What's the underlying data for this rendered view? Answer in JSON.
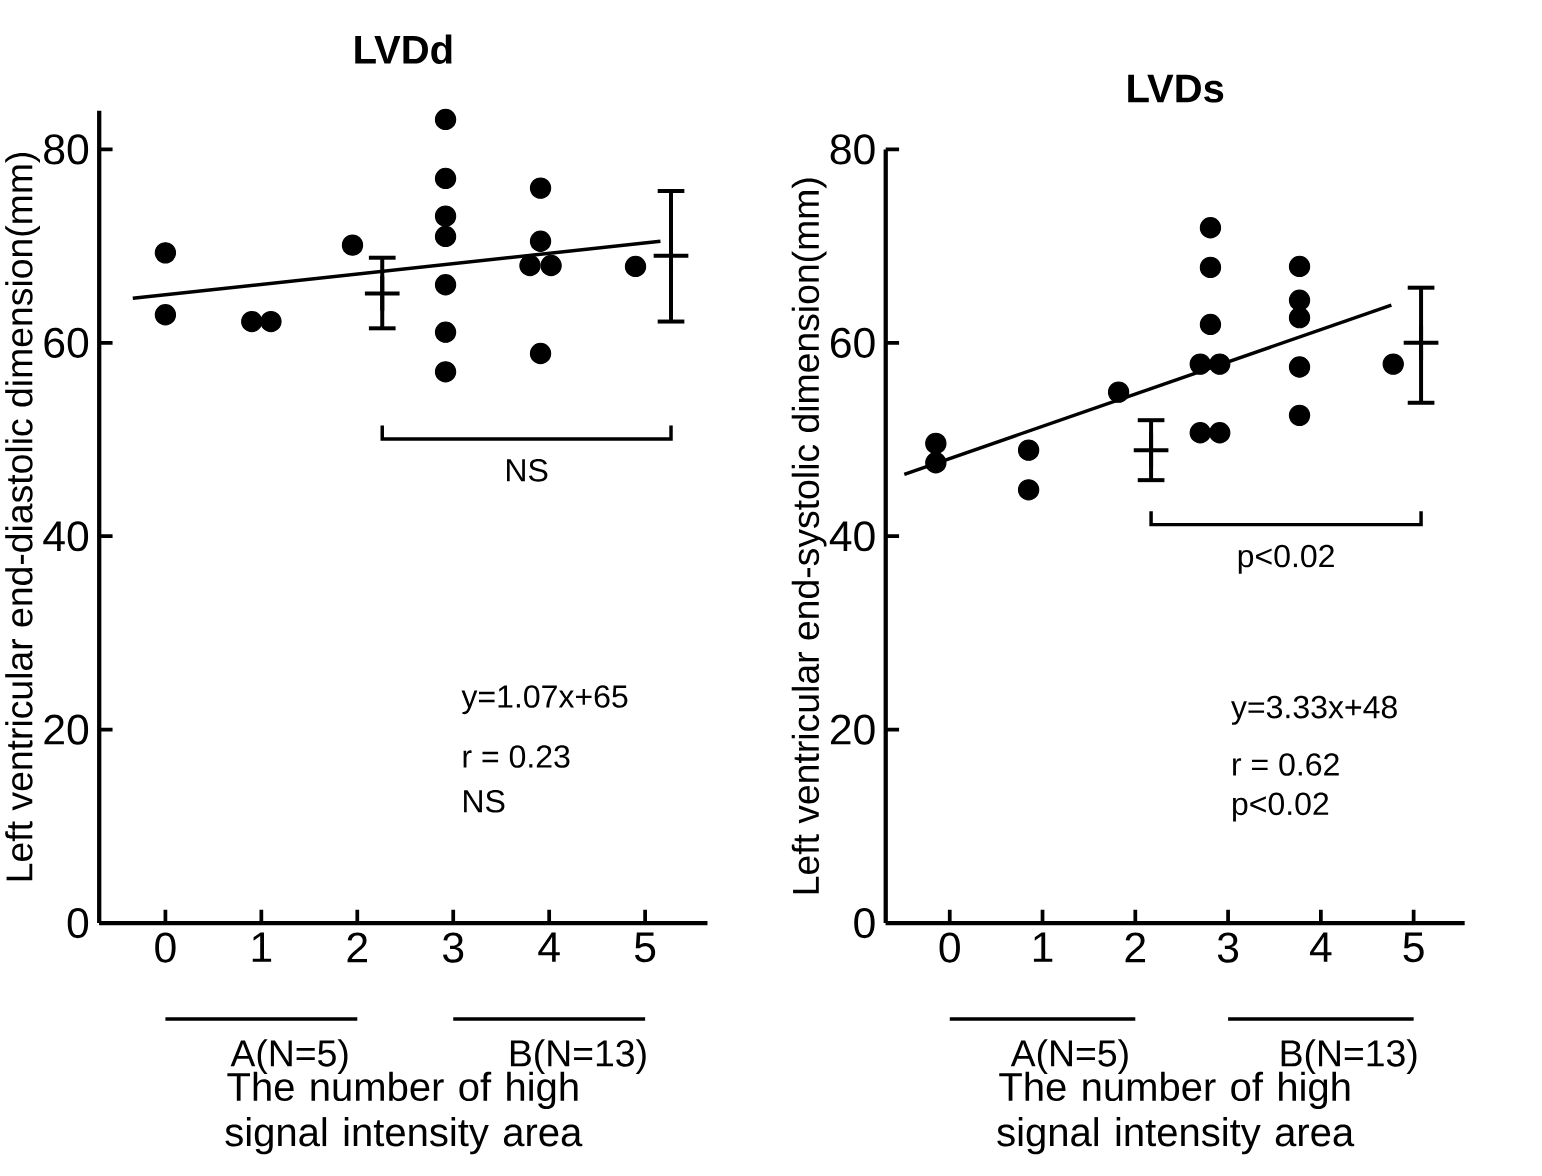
{
  "chart_data": [
    {
      "type": "scatter",
      "title": "LVDd",
      "xlabel": "The number of high signal intensity area",
      "ylabel": "Left ventricular end-diastolic dimension(mm)",
      "xlim": [
        -0.69,
        5.65
      ],
      "ylim": [
        0,
        84
      ],
      "xticks": [
        0,
        1,
        2,
        3,
        4,
        5
      ],
      "yticks": [
        0,
        20,
        40,
        60,
        80
      ],
      "series": [
        {
          "marker": "circle",
          "color": "#000000",
          "x": [
            0,
            0,
            0.9,
            1.1,
            1.95,
            2.92,
            2.92,
            2.92,
            2.92,
            2.92,
            2.92,
            2.92,
            3.91,
            3.91,
            3.8,
            4.02,
            3.91,
            4.9
          ],
          "values": [
            69.3,
            62.9,
            62.2,
            62.2,
            70.1,
            83.1,
            77.0,
            73.1,
            71.0,
            66.0,
            61.1,
            57.0,
            76.0,
            70.5,
            68.0,
            68.0,
            58.9,
            67.9
          ]
        },
        {
          "type": "line",
          "color": "#000000",
          "x": [
            -0.34,
            5.16
          ],
          "values": [
            64.6,
            70.5
          ]
        },
        {
          "type": "scatter",
          "marker": "cross",
          "color": "#000000",
          "x": [
            2.26,
            5.27
          ],
          "values": [
            65.1,
            69.0
          ],
          "errors": [
            [
              61.5,
              68.8
            ],
            [
              62.2,
              75.7
            ]
          ]
        }
      ],
      "annotations": [
        "NS",
        "A(N=5)",
        "B(N=13)",
        "y=1.07x+65",
        "r = 0.23",
        "NS"
      ]
    },
    {
      "type": "scatter",
      "title": "LVDs",
      "xlabel": "The number of high signal intensity area",
      "ylabel": "Left ventricular end-systolic dimension(mm)",
      "xlim": [
        -0.69,
        5.55
      ],
      "ylim": [
        0,
        80
      ],
      "xticks": [
        0,
        1,
        2,
        3,
        4,
        5
      ],
      "yticks": [
        0,
        20,
        40,
        60,
        80
      ],
      "series": [
        {
          "marker": "circle",
          "color": "#000000",
          "x": [
            -0.15,
            -0.15,
            0.85,
            0.85,
            1.82,
            2.81,
            2.81,
            2.81,
            2.7,
            2.91,
            2.7,
            2.91,
            3.77,
            3.77,
            3.77,
            3.77,
            3.77,
            4.78
          ],
          "values": [
            49.6,
            47.6,
            48.9,
            44.8,
            54.9,
            71.9,
            67.8,
            61.9,
            57.8,
            57.8,
            50.7,
            50.7,
            67.9,
            64.4,
            62.6,
            57.5,
            52.5,
            57.8
          ]
        },
        {
          "type": "line",
          "color": "#000000",
          "x": [
            -0.49,
            4.76
          ],
          "values": [
            46.4,
            63.9
          ]
        },
        {
          "type": "scatter",
          "marker": "cross",
          "color": "#000000",
          "x": [
            2.17,
            5.08
          ],
          "values": [
            48.9,
            60.0
          ],
          "errors": [
            [
              45.8,
              52.0
            ],
            [
              53.8,
              65.7
            ]
          ]
        }
      ],
      "annotations": [
        "p<0.02",
        "A(N=5)",
        "B(N=13)",
        "y=3.33x+48",
        "r = 0.62",
        "p<0.02"
      ]
    }
  ]
}
